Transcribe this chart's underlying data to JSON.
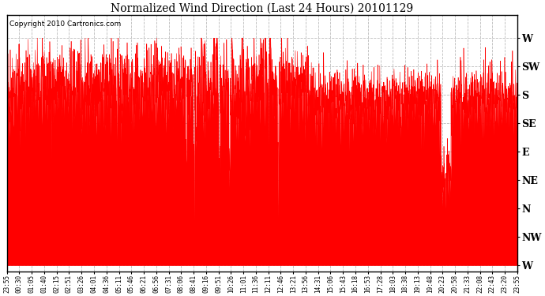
{
  "title": "Normalized Wind Direction (Last 24 Hours) 20101129",
  "copyright": "Copyright 2010 Cartronics.com",
  "line_color": "#FF0000",
  "background_color": "#FFFFFF",
  "grid_color": "#BBBBBB",
  "ytick_labels": [
    "W",
    "SW",
    "S",
    "SE",
    "E",
    "NE",
    "N",
    "NW",
    "W"
  ],
  "ytick_values": [
    8,
    7,
    6,
    5,
    4,
    3,
    2,
    1,
    0
  ],
  "ylim": [
    -0.2,
    8.8
  ],
  "xtick_labels": [
    "23:55",
    "00:30",
    "01:05",
    "01:40",
    "02:15",
    "02:51",
    "03:26",
    "04:01",
    "04:36",
    "05:11",
    "05:46",
    "06:21",
    "06:56",
    "07:31",
    "08:06",
    "08:41",
    "09:16",
    "09:51",
    "10:26",
    "11:01",
    "11:36",
    "12:11",
    "12:46",
    "13:21",
    "13:56",
    "14:31",
    "15:06",
    "15:43",
    "16:18",
    "16:53",
    "17:28",
    "18:03",
    "18:38",
    "19:13",
    "19:48",
    "20:23",
    "20:58",
    "21:33",
    "22:08",
    "22:43",
    "23:20",
    "23:55"
  ],
  "seed": 42,
  "figwidth": 6.9,
  "figheight": 3.75,
  "dpi": 100
}
